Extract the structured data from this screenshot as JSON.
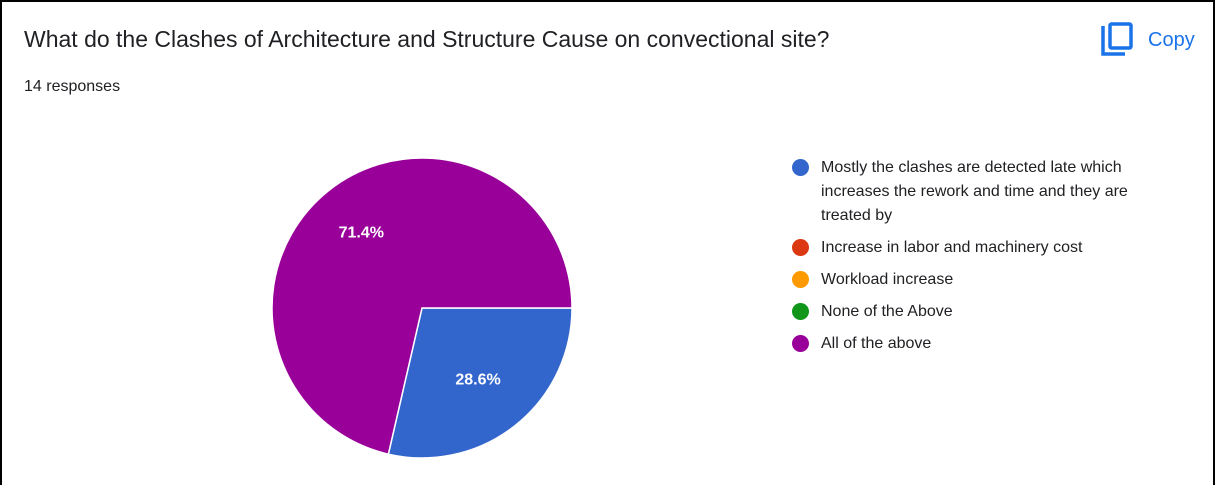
{
  "card": {
    "title": "What do the Clashes of Architecture and Structure Cause on convectional site?",
    "responses": "14 responses",
    "copy_label": "Copy",
    "copy_icon": "copy-icon",
    "accent_color": "#1a73e8"
  },
  "chart_data": {
    "type": "pie",
    "title": "",
    "total_responses": 14,
    "legend_position": "right",
    "slices": [
      {
        "label": "Mostly the clashes are detected late which increases the rework and time and they are treated by",
        "value": 28.6,
        "display": "28.6%",
        "color": "#3366cc"
      },
      {
        "label": "Increase in labor and machinery cost",
        "value": 0,
        "display": "",
        "color": "#dc3912"
      },
      {
        "label": "Workload increase",
        "value": 0,
        "display": "",
        "color": "#ff9900"
      },
      {
        "label": "None of the Above",
        "value": 0,
        "display": "",
        "color": "#109618"
      },
      {
        "label": "All of the above",
        "value": 71.4,
        "display": "71.4%",
        "color": "#990099"
      }
    ]
  }
}
